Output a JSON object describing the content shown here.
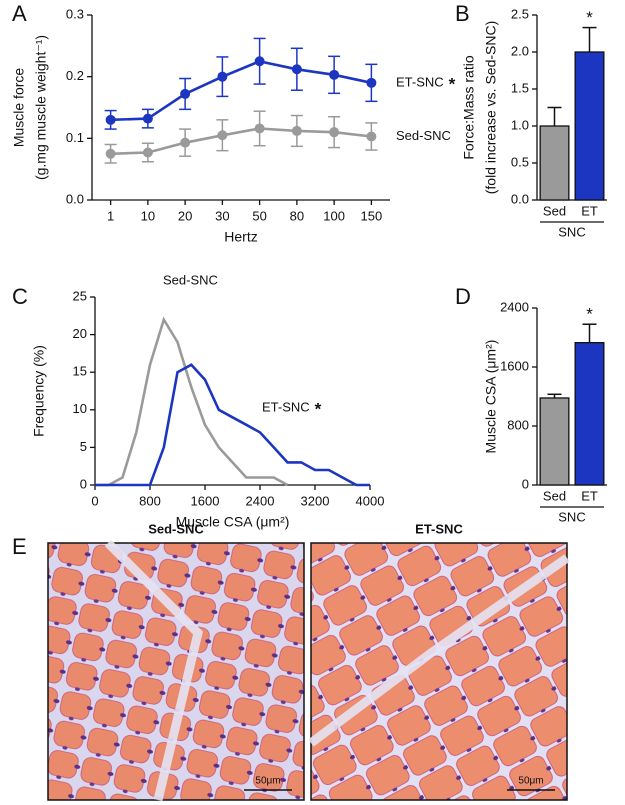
{
  "chart_data": [
    {
      "type": "line",
      "label": "A",
      "xlabel": "Hertz",
      "ylabel": [
        "Muscle force",
        "(g.mg muscle weight⁻¹)"
      ],
      "categories": [
        "1",
        "10",
        "20",
        "30",
        "50",
        "80",
        "100",
        "150"
      ],
      "series": [
        {
          "name": "ET-SNC",
          "annotation": "*",
          "color": "#1c36c2",
          "values": [
            0.13,
            0.132,
            0.172,
            0.2,
            0.225,
            0.212,
            0.203,
            0.19
          ],
          "errors": [
            0.015,
            0.015,
            0.025,
            0.032,
            0.037,
            0.034,
            0.03,
            0.03
          ]
        },
        {
          "name": "Sed-SNC",
          "color": "#9a9a9a",
          "values": [
            0.075,
            0.077,
            0.093,
            0.105,
            0.116,
            0.112,
            0.11,
            0.103
          ],
          "errors": [
            0.015,
            0.015,
            0.022,
            0.025,
            0.028,
            0.025,
            0.025,
            0.022
          ]
        }
      ],
      "ylim": [
        0,
        0.3
      ],
      "yticks": [
        {
          "value": 0,
          "label": "0.0"
        },
        0.1,
        0.2,
        0.3
      ]
    },
    {
      "type": "bar",
      "label": "B",
      "ylabel": [
        "Force:Mass ratio",
        "(fold increase vs. Sed-SNC)"
      ],
      "categories": [
        "Sed",
        "ET"
      ],
      "group_label": "SNC",
      "colors": [
        "#9a9a9a",
        "#1c36c2"
      ],
      "values": [
        1.0,
        2.0
      ],
      "errors": [
        0.25,
        0.33
      ],
      "annotation": "*",
      "ylim": [
        0,
        2.5
      ],
      "yticks": [
        {
          "value": 0,
          "label": "0.0"
        },
        0.5,
        {
          "value": 1,
          "label": "1.0"
        },
        1.5,
        {
          "value": 2,
          "label": "2.0"
        },
        2.5
      ]
    },
    {
      "type": "line",
      "label": "C",
      "xlabel": "Muscle CSA (μm²)",
      "ylabel": [
        "Frequency (%)"
      ],
      "x": [
        0,
        200,
        400,
        600,
        800,
        1000,
        1200,
        1400,
        1600,
        1800,
        2000,
        2200,
        2400,
        2600,
        2800,
        3000,
        3200,
        3400,
        3600,
        3800,
        4000
      ],
      "series": [
        {
          "name": "Sed-SNC",
          "color": "#9a9a9a",
          "values": [
            0,
            0,
            1,
            7,
            16,
            22,
            19,
            13,
            8,
            5,
            3,
            1,
            1,
            1,
            0,
            null,
            null,
            null,
            null,
            null,
            null
          ]
        },
        {
          "name": "ET-SNC",
          "annotation": "*",
          "color": "#1c36c2",
          "values": [
            0,
            0,
            0,
            0,
            0,
            5,
            15,
            16,
            14,
            10,
            9,
            8,
            7,
            5,
            3,
            3,
            2,
            2,
            1,
            0,
            0
          ]
        }
      ],
      "xlim": [
        0,
        4000
      ],
      "xticks": [
        0,
        800,
        1600,
        2400,
        3200,
        4000
      ],
      "ylim": [
        0,
        25
      ],
      "yticks": [
        0,
        5,
        10,
        15,
        20,
        25
      ]
    },
    {
      "type": "bar",
      "label": "D",
      "ylabel": [
        "Muscle CSA (μm²)"
      ],
      "categories": [
        "Sed",
        "ET"
      ],
      "group_label": "SNC",
      "colors": [
        "#9a9a9a",
        "#1c36c2"
      ],
      "values": [
        1180,
        1930
      ],
      "errors": [
        50,
        250
      ],
      "annotation": "*",
      "ylim": [
        0,
        2400
      ],
      "yticks": [
        0,
        800,
        1600,
        2400
      ]
    }
  ],
  "panel_e": {
    "label": "E",
    "images": [
      {
        "title": "Sed-SNC",
        "scale_bar": "50μm"
      },
      {
        "title": "ET-SNC",
        "scale_bar": "50μm"
      }
    ]
  }
}
